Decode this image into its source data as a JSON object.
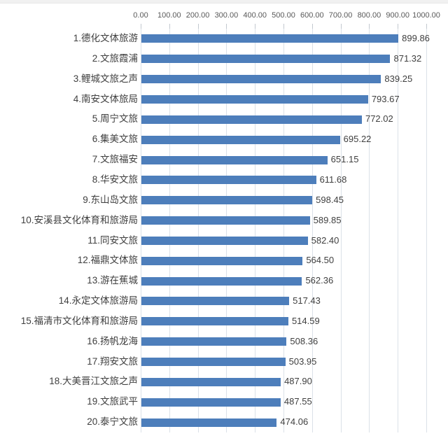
{
  "page": {
    "background_color": "#ffffff",
    "top_strip_color": "#f1f1f1"
  },
  "chart_data": {
    "type": "bar",
    "orientation": "horizontal",
    "title": "",
    "xlabel": "",
    "ylabel": "",
    "value_axis_position": "top",
    "xlim": [
      0,
      1000
    ],
    "grid": true,
    "legend_position": "none",
    "categories": [
      "1.德化文体旅游",
      "2.文旅霞浦",
      "3.鲤城文旅之声",
      "4.南安文体旅局",
      "5.周宁文旅",
      "6.集美文旅",
      "7.文旅福安",
      "8.华安文旅",
      "9.东山岛文旅",
      "10.安溪县文化体育和旅游局",
      "11.同安文旅",
      "12.福鼎文体旅",
      "13.游在蕉城",
      "14.永定文体旅游局",
      "15.福清市文化体育和旅游局",
      "16.扬帆龙海",
      "17.翔安文旅",
      "18.大美晋江文旅之声",
      "19.文旅武平",
      "20.泰宁文旅"
    ],
    "values": [
      899.86,
      871.32,
      839.25,
      793.67,
      772.02,
      695.22,
      651.15,
      611.68,
      598.45,
      589.85,
      582.4,
      564.5,
      562.36,
      517.43,
      514.59,
      508.36,
      503.95,
      487.9,
      487.55,
      474.06
    ],
    "value_labels": [
      "899.86",
      "871.32",
      "839.25",
      "793.67",
      "772.02",
      "695.22",
      "651.15",
      "611.68",
      "598.45",
      "589.85",
      "582.40",
      "564.50",
      "562.36",
      "517.43",
      "514.59",
      "508.36",
      "503.95",
      "487.90",
      "487.55",
      "474.06"
    ],
    "axis_tick_values": [
      0,
      100,
      200,
      300,
      400,
      500,
      600,
      700,
      800,
      900,
      1000
    ],
    "axis_tick_labels": [
      "0.00",
      "100.00",
      "200.00",
      "300.00",
      "400.00",
      "500.00",
      "600.00",
      "700.00",
      "800.00",
      "900.00",
      "1000.00"
    ],
    "colors": {
      "bar": "#4d7ebb",
      "gridline": "#dbe1e8",
      "tickmark": "#c3c9d0",
      "category_label": "#3f3f3f",
      "value_label": "#3f3f3f",
      "axis_label": "#595959"
    }
  }
}
